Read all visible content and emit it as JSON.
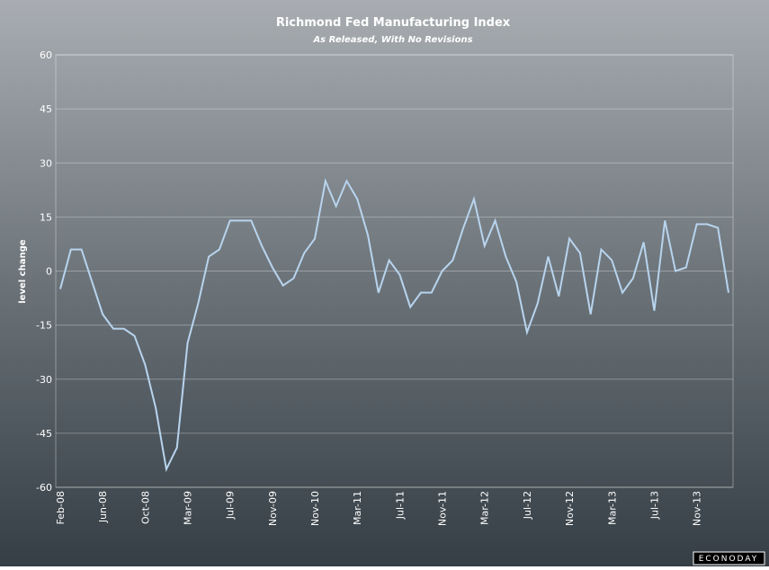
{
  "chart_data": {
    "type": "line",
    "title": "Richmond Fed Manufacturing Index",
    "subtitle": "As Released, With No Revisions",
    "ylabel": "level change",
    "brand": "ECONODAY",
    "categories": [
      "Feb-08",
      null,
      null,
      null,
      "Jun-08",
      null,
      null,
      null,
      "Oct-08",
      null,
      null,
      null,
      "Mar-09",
      null,
      null,
      null,
      "Jul-09",
      null,
      null,
      null,
      "Nov-09",
      null,
      null,
      null,
      "Nov-10",
      null,
      null,
      null,
      "Mar-11",
      null,
      null,
      null,
      "Jul-11",
      null,
      null,
      null,
      "Nov-11",
      null,
      null,
      null,
      "Mar-12",
      null,
      null,
      null,
      "Jul-12",
      null,
      null,
      null,
      "Nov-12",
      null,
      null,
      null,
      "Mar-13",
      null,
      null,
      null,
      "Jul-13",
      null,
      null,
      null,
      "Nov-13",
      null,
      null,
      null
    ],
    "series": [
      {
        "color": "#b8d4ee",
        "values": [
          -5,
          6,
          6,
          -3,
          -12,
          -16,
          -16,
          -18,
          -26,
          -38,
          -55,
          -49,
          -20,
          -9,
          4,
          6,
          14,
          14,
          14,
          7,
          1,
          -4,
          -2,
          5,
          9,
          25,
          18,
          25,
          20,
          10,
          -6,
          3,
          -1,
          -10,
          -6,
          -6,
          0,
          3,
          12,
          20,
          7,
          14,
          4,
          -3,
          -17,
          -9,
          4,
          -7,
          9,
          5,
          -12,
          6,
          3,
          -6,
          -2,
          8,
          -11,
          14,
          0,
          1,
          13,
          13,
          12,
          -6
        ]
      }
    ],
    "ylim": [
      -60,
      60
    ],
    "yticks": [
      -60,
      -45,
      -30,
      -15,
      0,
      15,
      30,
      45,
      60
    ],
    "grid": true
  }
}
